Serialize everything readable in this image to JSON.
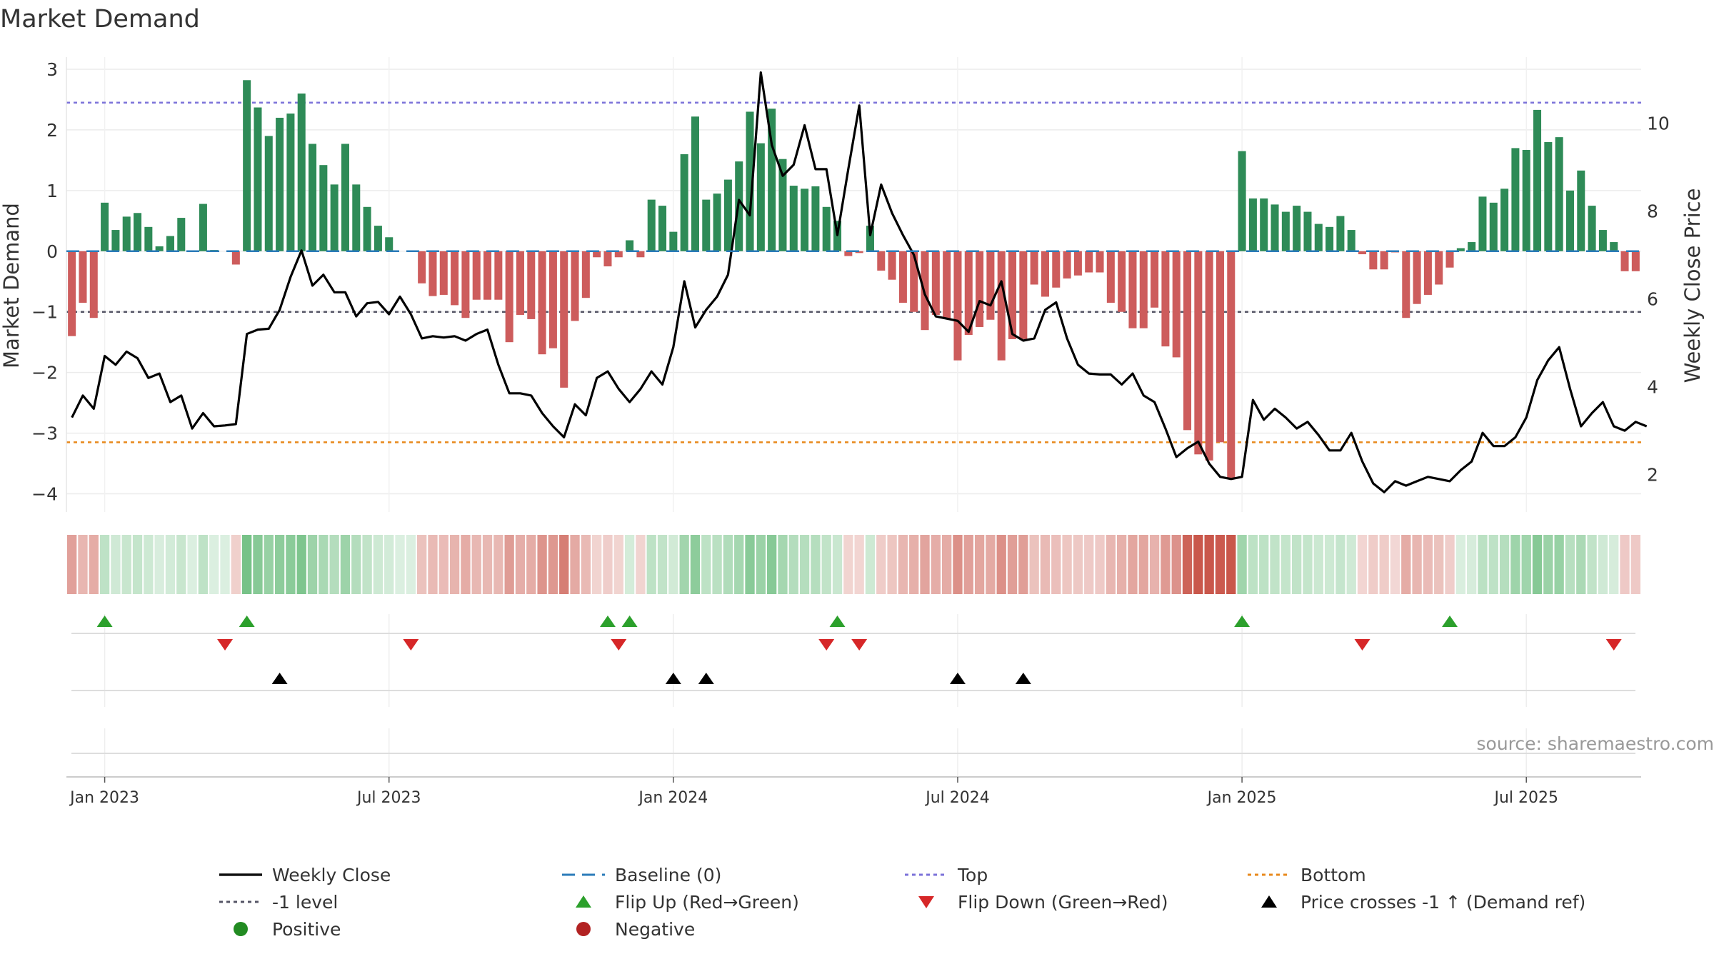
{
  "chart_data": {
    "type": "bar",
    "title": "Market Demand",
    "ylabel_left": "Market Demand",
    "ylabel_right": "Weekly Close Price",
    "ylim_left": [
      -4.3,
      3.2
    ],
    "ylim_right": [
      1.15,
      11.5
    ],
    "yticks_left": [
      3,
      2,
      1,
      0,
      -1,
      -2,
      -3,
      -4
    ],
    "ytick_labels_left": [
      "3",
      "2",
      "1",
      "0",
      "−1",
      "−2",
      "−3",
      "−4"
    ],
    "yticks_right": [
      10,
      8,
      6,
      4,
      2
    ],
    "ytick_labels_right": [
      "10",
      "8",
      "6",
      "4",
      "2"
    ],
    "xticks": [
      {
        "label": "Jan 2023",
        "week": 3
      },
      {
        "label": "Jul 2023",
        "week": 29
      },
      {
        "label": "Jan 2024",
        "week": 55
      },
      {
        "label": "Jul 2024",
        "week": 81
      },
      {
        "label": "Jan 2025",
        "week": 107
      },
      {
        "label": "Jul 2025",
        "week": 133
      }
    ],
    "reference_lines": {
      "top": 2.45,
      "bottom": -3.15,
      "minus_one": -1,
      "baseline": 0
    },
    "demand": [
      -1.4,
      -0.85,
      -1.1,
      0.8,
      0.35,
      0.57,
      0.63,
      0.4,
      0.08,
      0.25,
      0.55,
      0,
      0.78,
      0.02,
      0,
      -0.22,
      2.82,
      2.37,
      1.9,
      2.2,
      2.27,
      2.6,
      1.77,
      1.42,
      1.1,
      1.77,
      1.1,
      0.73,
      0.42,
      0.23,
      0,
      0,
      -0.53,
      -0.74,
      -0.72,
      -0.89,
      -1.1,
      -0.8,
      -0.8,
      -0.8,
      -1.5,
      -1.05,
      -1.12,
      -1.7,
      -1.6,
      -2.25,
      -1.15,
      -0.77,
      -0.1,
      -0.25,
      -0.1,
      0.18,
      -0.1,
      0.85,
      0.75,
      0.32,
      1.6,
      2.22,
      0.85,
      0.95,
      1.18,
      1.48,
      2.3,
      1.78,
      2.35,
      1.52,
      1.08,
      1.03,
      1.07,
      0.73,
      0.5,
      -0.08,
      -0.03,
      0.42,
      -0.32,
      -0.47,
      -0.85,
      -1,
      -1.3,
      -1.05,
      -1.12,
      -1.8,
      -1.38,
      -1.25,
      -1.13,
      -1.8,
      -1.45,
      -1.45,
      -0.55,
      -0.75,
      -0.6,
      -0.45,
      -0.4,
      -0.35,
      -0.35,
      -0.85,
      -1,
      -1.27,
      -1.27,
      -0.93,
      -1.57,
      -1.75,
      -2.95,
      -3.35,
      -3.45,
      -3.15,
      -3.75,
      1.65,
      0.87,
      0.87,
      0.77,
      0.65,
      0.75,
      0.65,
      0.45,
      0.4,
      0.58,
      0.35,
      -0.05,
      -0.3,
      -0.3,
      -0.02,
      -1.1,
      -0.87,
      -0.72,
      -0.55,
      -0.27,
      0.05,
      0.15,
      0.9,
      0.8,
      1.03,
      1.7,
      1.67,
      2.33,
      1.8,
      1.88,
      1,
      1.33,
      0.75,
      0.35,
      0.15,
      -0.33,
      -0.33
    ],
    "weekly_close": [
      3.3,
      3.8,
      3.5,
      4.7,
      4.5,
      4.8,
      4.65,
      4.2,
      4.3,
      3.65,
      3.8,
      3.05,
      3.4,
      3.1,
      3.12,
      3.15,
      5.2,
      5.3,
      5.32,
      5.75,
      6.5,
      7.1,
      6.3,
      6.55,
      6.15,
      6.15,
      5.6,
      5.9,
      5.93,
      5.65,
      6.05,
      5.65,
      5.1,
      5.15,
      5.12,
      5.15,
      5.05,
      5.2,
      5.3,
      4.5,
      3.85,
      3.85,
      3.8,
      3.4,
      3.1,
      2.85,
      3.6,
      3.35,
      4.2,
      4.35,
      3.95,
      3.65,
      3.95,
      4.35,
      4.05,
      4.9,
      6.4,
      5.35,
      5.75,
      6.05,
      6.55,
      8.25,
      7.9,
      11.15,
      9.5,
      8.8,
      9.05,
      9.95,
      8.95,
      8.95,
      7.45,
      8.95,
      10.4,
      7.45,
      8.6,
      7.95,
      7.45,
      7,
      6.1,
      5.6,
      5.55,
      5.5,
      5.25,
      5.95,
      5.85,
      6.4,
      5.2,
      5.05,
      5.1,
      5.75,
      5.92,
      5.1,
      4.5,
      4.3,
      4.28,
      4.28,
      4.05,
      4.3,
      3.8,
      3.65,
      3.05,
      2.4,
      2.6,
      2.75,
      2.25,
      1.95,
      1.9,
      1.95,
      3.7,
      3.25,
      3.5,
      3.3,
      3.05,
      3.2,
      2.9,
      2.55,
      2.55,
      2.95,
      2.3,
      1.8,
      1.6,
      1.85,
      1.75,
      1.85,
      1.95,
      1.9,
      1.85,
      2.1,
      2.3,
      2.95,
      2.65,
      2.65,
      2.85,
      3.3,
      4.15,
      4.6,
      4.9,
      3.95,
      3.1,
      3.4,
      3.65,
      3.1,
      3,
      3.2,
      3.1
    ],
    "flip_up_weeks": [
      3,
      16,
      49,
      51,
      70,
      107,
      126
    ],
    "flip_down_weeks": [
      14,
      31,
      50,
      69,
      72,
      118,
      141
    ],
    "price_cross_weeks": [
      19,
      55,
      58,
      81,
      87
    ],
    "source_note": "source: sharemaestro.com",
    "legend": [
      {
        "key": "weekly-close",
        "label": "Weekly Close",
        "glyph": "line",
        "color": "#111111"
      },
      {
        "key": "baseline",
        "label": "Baseline (0)",
        "glyph": "dash",
        "color": "#2b7bb9"
      },
      {
        "key": "top",
        "label": "Top",
        "glyph": "dot",
        "color": "#7b72d9"
      },
      {
        "key": "bottom",
        "label": "Bottom",
        "glyph": "dot",
        "color": "#e8891c"
      },
      {
        "key": "minus-one",
        "label": "-1 level",
        "glyph": "dot",
        "color": "#555566"
      },
      {
        "key": "flip-up",
        "label": "Flip Up (Red→Green)",
        "glyph": "tri-up",
        "color": "#2ca02c"
      },
      {
        "key": "flip-down",
        "label": "Flip Down (Green→Red)",
        "glyph": "tri-down",
        "color": "#d62728"
      },
      {
        "key": "price-cross",
        "label": "Price crosses -1 ↑ (Demand ref)",
        "glyph": "tri-up",
        "color": "#000000"
      },
      {
        "key": "positive",
        "label": "Positive",
        "glyph": "circle",
        "color": "#228b22"
      },
      {
        "key": "negative",
        "label": "Negative",
        "glyph": "circle",
        "color": "#b22222"
      }
    ],
    "colors": {
      "positive_bar": "#2e8b57",
      "negative_bar": "#cd5c5c",
      "price_line": "#000000",
      "band_positive": "#4caf62",
      "band_negative": "#c0392b"
    }
  }
}
